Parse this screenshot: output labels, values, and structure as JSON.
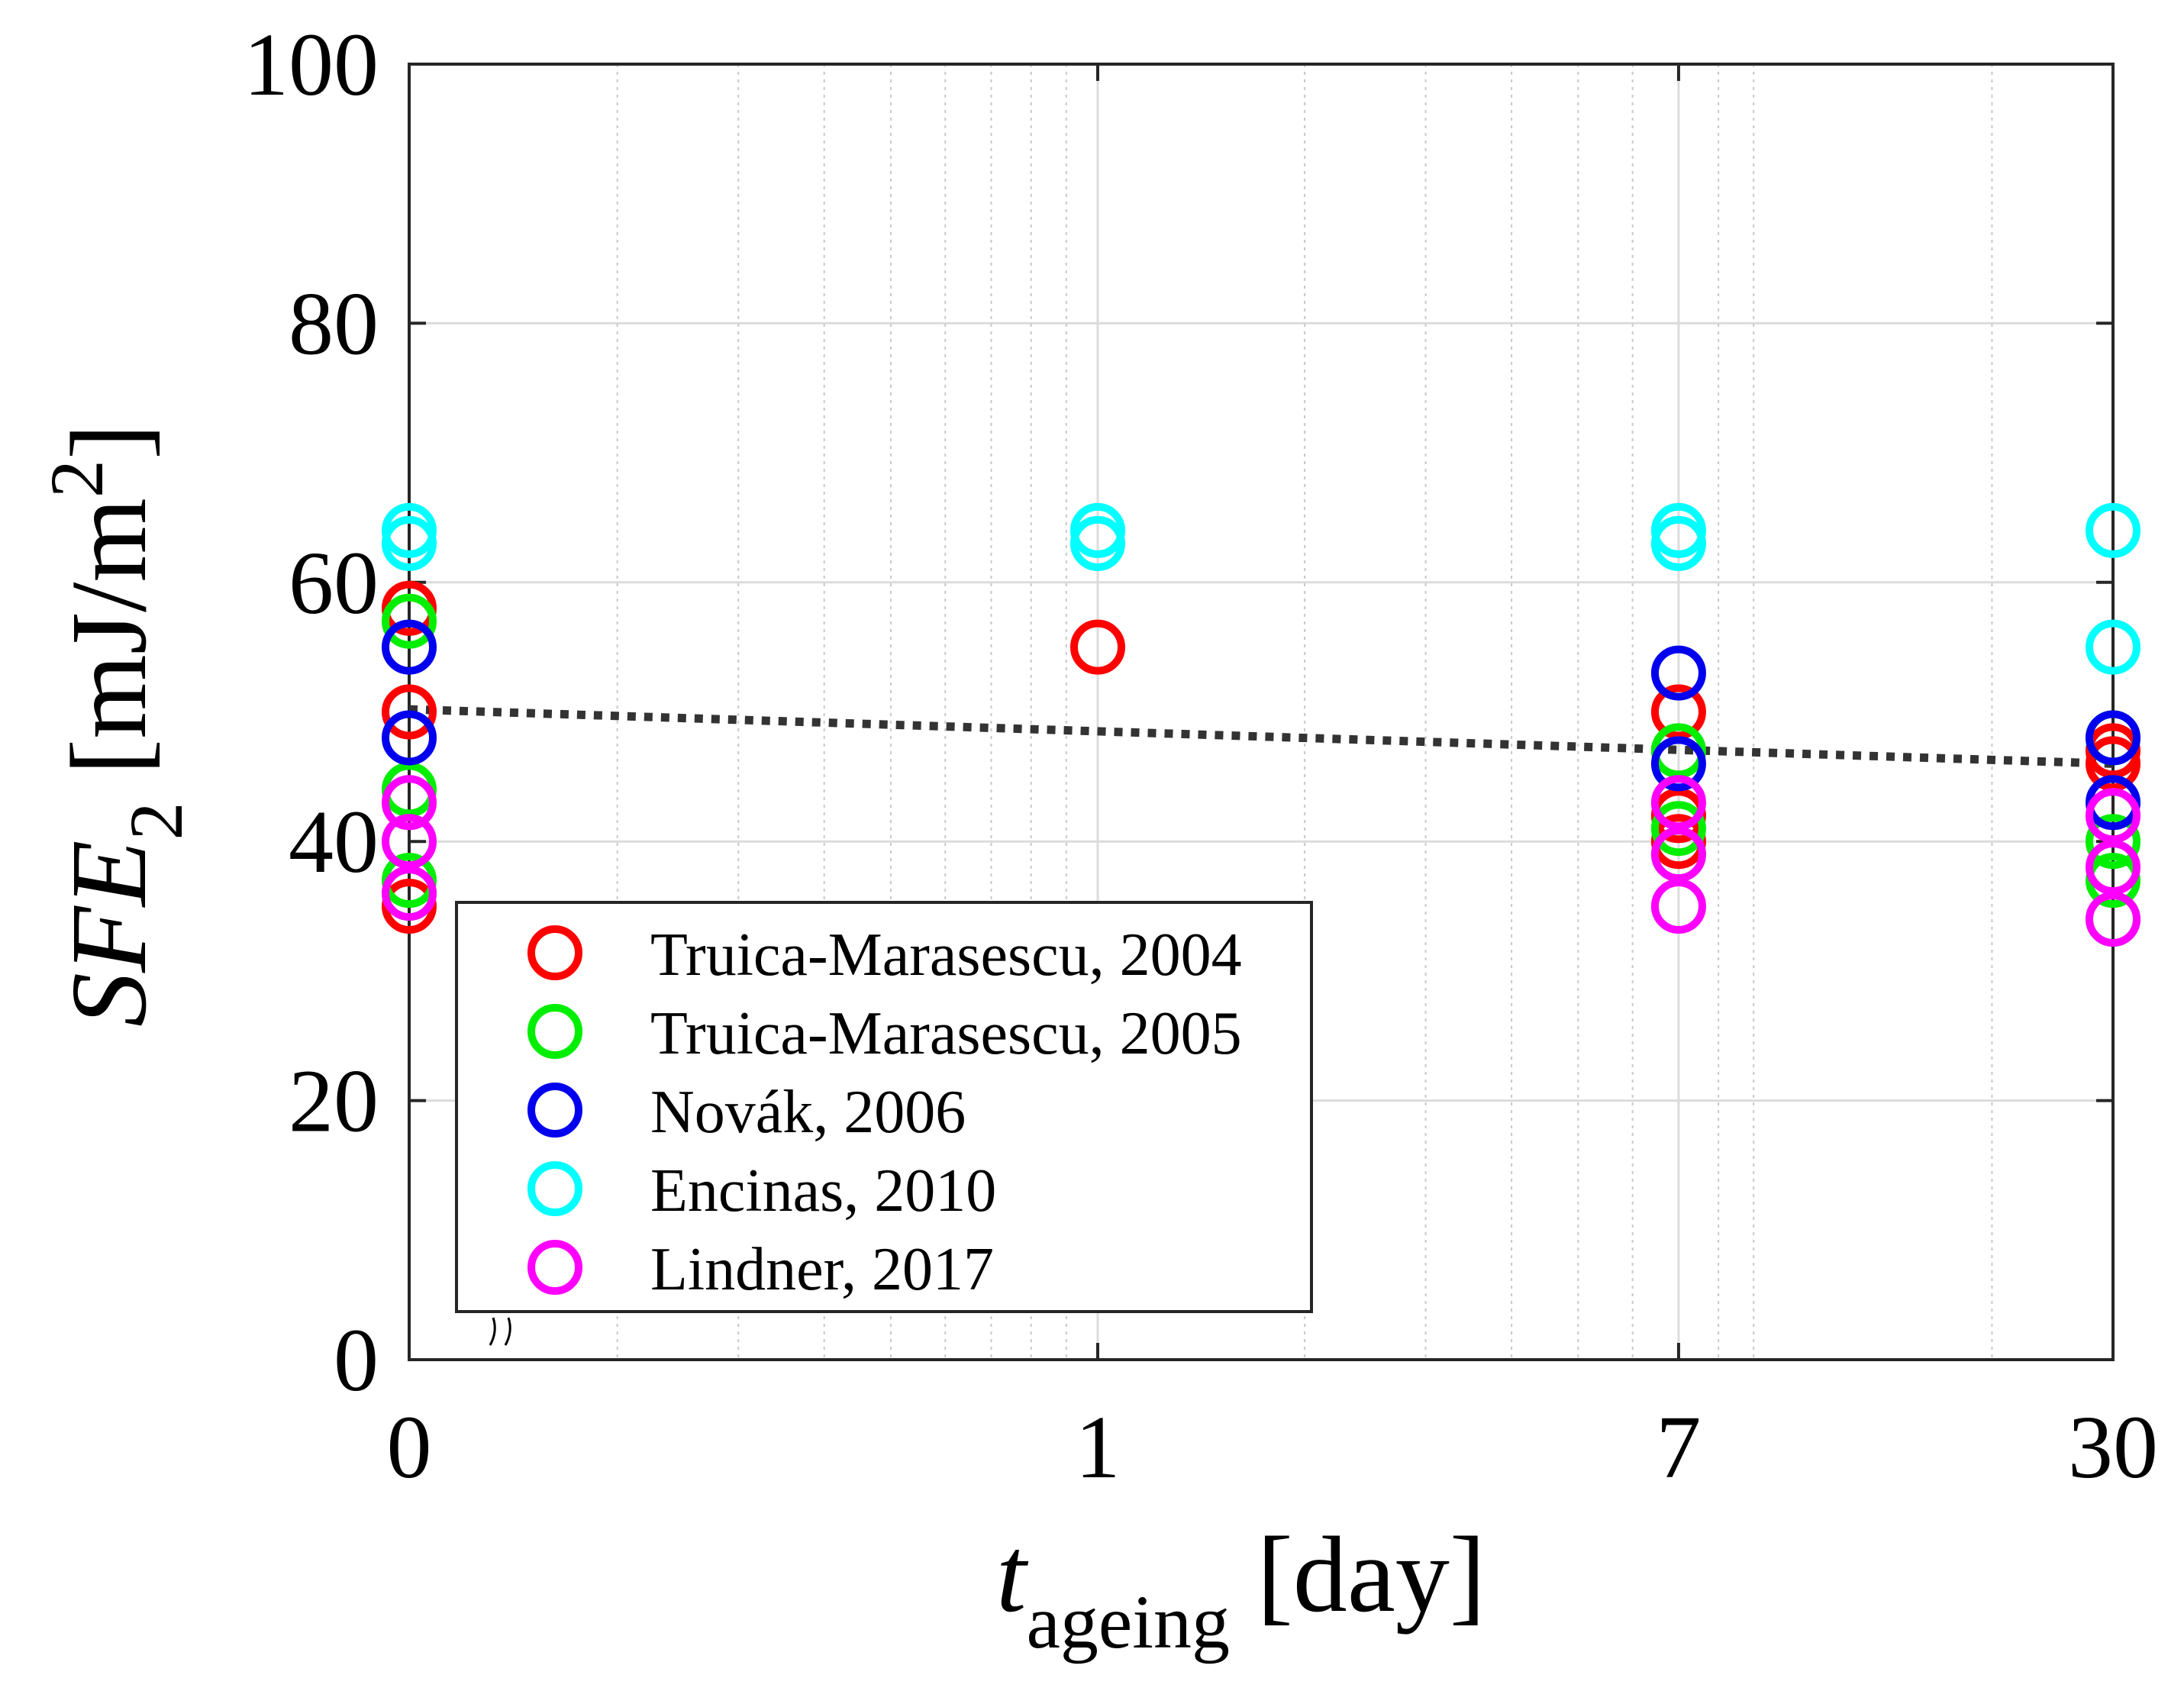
{
  "chart_data": {
    "type": "scatter",
    "title": "",
    "xlabel": {
      "main": "t",
      "sub": "ageing",
      "unit": " [day]"
    },
    "ylabel": {
      "main": "SFE",
      "sub": "2",
      "unit": " [mJ/m",
      "sup": "2",
      "close": "]"
    },
    "x_scale": "log (broken axis at 0)",
    "x_ticks": [
      "0",
      "1",
      "7",
      "30"
    ],
    "ylim": [
      0,
      100
    ],
    "y_ticks": [
      "0",
      "20",
      "40",
      "60",
      "80",
      "100"
    ],
    "grid": true,
    "legend_position": "bottom-left",
    "series": [
      {
        "name": "Truica-Marasescu, 2004",
        "color": "#ff0000",
        "points": [
          [
            0,
            58
          ],
          [
            0,
            50
          ],
          [
            0,
            35
          ],
          [
            1,
            55
          ],
          [
            7,
            50
          ],
          [
            7,
            42
          ],
          [
            7,
            40
          ],
          [
            30,
            47
          ],
          [
            30,
            46
          ]
        ]
      },
      {
        "name": "Truica-Marasescu, 2005",
        "color": "#00ee00",
        "points": [
          [
            0,
            57
          ],
          [
            0,
            44
          ],
          [
            0,
            37
          ],
          [
            0,
            36
          ],
          [
            7,
            47
          ],
          [
            7,
            41
          ],
          [
            7,
            39
          ],
          [
            30,
            48
          ],
          [
            30,
            40
          ],
          [
            30,
            37
          ],
          [
            30,
            34
          ]
        ]
      },
      {
        "name": "Novák, 2006",
        "color": "#0000ee",
        "points": [
          [
            0,
            55
          ],
          [
            0,
            48
          ],
          [
            7,
            53
          ],
          [
            7,
            46
          ],
          [
            30,
            48
          ],
          [
            30,
            43
          ]
        ]
      },
      {
        "name": "Encinas, 2010",
        "color": "#00ffff",
        "points": [
          [
            0,
            64
          ],
          [
            0,
            63
          ],
          [
            1,
            64
          ],
          [
            1,
            63
          ],
          [
            7,
            64
          ],
          [
            7,
            63
          ],
          [
            30,
            64
          ],
          [
            30,
            55
          ]
        ]
      },
      {
        "name": "Lindner, 2017",
        "color": "#ff00ff",
        "points": [
          [
            0,
            43
          ],
          [
            0,
            40
          ],
          [
            0,
            36
          ],
          [
            7,
            43
          ],
          [
            7,
            39
          ],
          [
            7,
            35
          ],
          [
            30,
            42
          ],
          [
            30,
            38
          ],
          [
            30,
            34
          ]
        ]
      }
    ],
    "trendline": {
      "style": "dotted",
      "color": "#333333",
      "points": [
        [
          0,
          50.2
        ],
        [
          30,
          46
        ]
      ]
    }
  }
}
